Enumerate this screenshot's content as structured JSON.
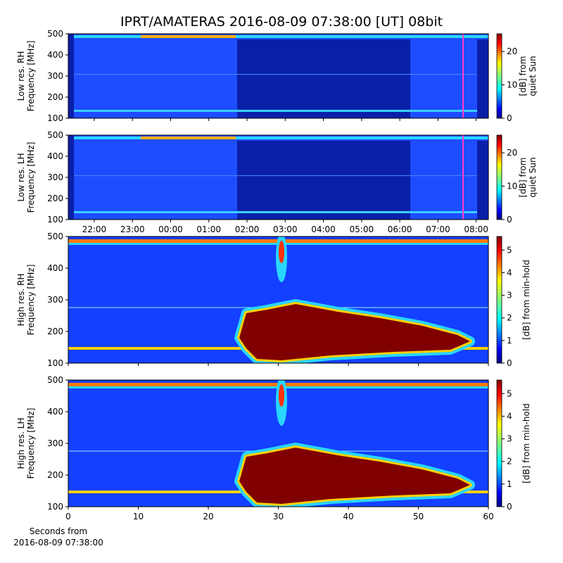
{
  "title": "IPRT/AMATERAS 2016-08-09 07:38:00 [UT]   08bit",
  "chart_data": [
    {
      "type": "heatmap",
      "ylabel": [
        "Low res. RH",
        "Frequency [MHz]"
      ],
      "ylim": [
        100,
        500
      ],
      "yticks": [
        100,
        200,
        300,
        400,
        500
      ],
      "xlim": [
        21.32,
        32.32
      ],
      "colorbar": {
        "label": [
          "[dB] from",
          "quiet Sun"
        ],
        "lim": [
          0,
          25.3
        ],
        "ticks": [
          0,
          10,
          20
        ],
        "colormap": "jet"
      }
    },
    {
      "type": "heatmap",
      "ylabel": [
        "Low res. LH",
        "Frequency [MHz]"
      ],
      "ylim": [
        100,
        500
      ],
      "yticks": [
        100,
        200,
        300,
        400,
        500
      ],
      "xlim": [
        21.32,
        32.32
      ],
      "xticks": [
        {
          "value": 22,
          "label": "22:00"
        },
        {
          "value": 23,
          "label": "23:00"
        },
        {
          "value": 24,
          "label": "00:00"
        },
        {
          "value": 25,
          "label": "01:00"
        },
        {
          "value": 26,
          "label": "02:00"
        },
        {
          "value": 27,
          "label": "03:00"
        },
        {
          "value": 28,
          "label": "04:00"
        },
        {
          "value": 29,
          "label": "05:00"
        },
        {
          "value": 30,
          "label": "06:00"
        },
        {
          "value": 31,
          "label": "07:00"
        },
        {
          "value": 32,
          "label": "08:00"
        }
      ],
      "colorbar": {
        "label": [
          "[dB] from",
          "quiet Sun"
        ],
        "lim": [
          0,
          25.3
        ],
        "ticks": [
          0,
          10,
          20
        ],
        "colormap": "jet"
      }
    },
    {
      "type": "heatmap",
      "ylabel": [
        "High res. RH",
        "Frequency [MHz]"
      ],
      "ylim": [
        100,
        500
      ],
      "yticks": [
        100,
        200,
        300,
        400,
        500
      ],
      "xlim": [
        0,
        60
      ],
      "colorbar": {
        "label": [
          "[dB] from min-hold"
        ],
        "lim": [
          0,
          5.6
        ],
        "ticks": [
          0,
          1,
          2,
          3,
          4,
          5
        ],
        "colormap": "jet"
      }
    },
    {
      "type": "heatmap",
      "ylabel": [
        "High res. LH",
        "Frequency [MHz]"
      ],
      "ylim": [
        100,
        500
      ],
      "yticks": [
        100,
        200,
        300,
        400,
        500
      ],
      "xlim": [
        0,
        60
      ],
      "xticks": [
        0,
        10,
        20,
        30,
        40,
        50,
        60
      ],
      "xlabel": [
        "Seconds from",
        "2016-08-09 07:38:00"
      ],
      "colorbar": {
        "label": [
          "[dB] from min-hold"
        ],
        "lim": [
          0,
          5.6
        ],
        "ticks": [
          0,
          1,
          2,
          3,
          4,
          5
        ],
        "colormap": "jet"
      }
    }
  ]
}
